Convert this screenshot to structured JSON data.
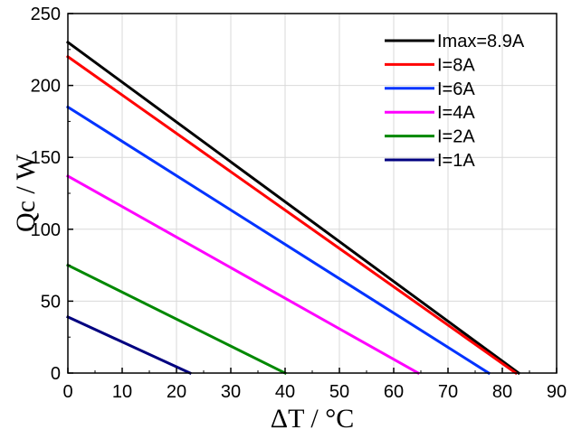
{
  "chart_data": {
    "type": "line",
    "xlabel": "ΔT / °C",
    "ylabel": "Qc / W",
    "xlim": [
      0,
      90
    ],
    "ylim": [
      0,
      250
    ],
    "xticks": [
      0,
      10,
      20,
      30,
      40,
      50,
      60,
      70,
      80,
      90
    ],
    "yticks": [
      0,
      50,
      100,
      150,
      200,
      250
    ],
    "grid": true,
    "legend_position": "top-right",
    "series": [
      {
        "name": "Imax=8.9A",
        "color": "#000000",
        "x": [
          0,
          83
        ],
        "y": [
          230,
          0
        ]
      },
      {
        "name": "I=8A",
        "color": "#ff0000",
        "x": [
          0,
          82.5
        ],
        "y": [
          220,
          0
        ]
      },
      {
        "name": "I=6A",
        "color": "#0033ff",
        "x": [
          0,
          77.5
        ],
        "y": [
          185,
          0
        ]
      },
      {
        "name": "I=4A",
        "color": "#ff00ff",
        "x": [
          0,
          64.5
        ],
        "y": [
          137,
          0
        ]
      },
      {
        "name": "I=2A",
        "color": "#008800",
        "x": [
          0,
          40
        ],
        "y": [
          75,
          0
        ]
      },
      {
        "name": "I=1A",
        "color": "#000080",
        "x": [
          0,
          22.5
        ],
        "y": [
          39,
          0
        ]
      }
    ]
  }
}
